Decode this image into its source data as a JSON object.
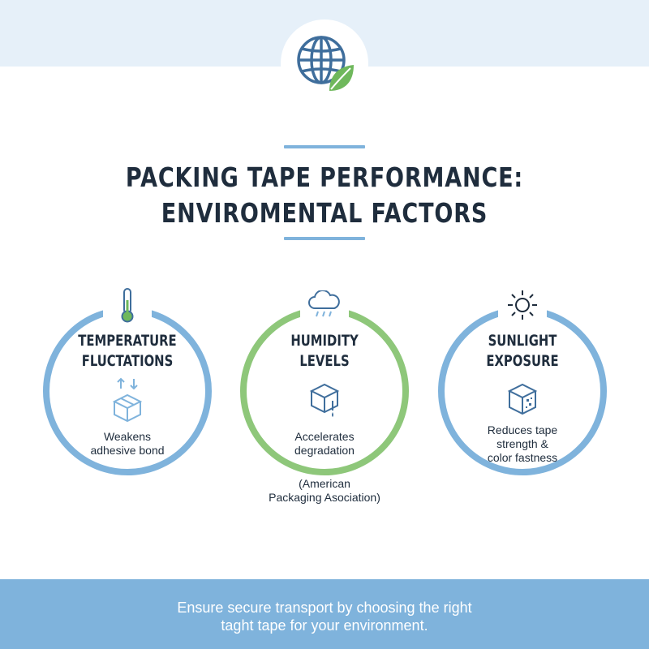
{
  "header": {
    "logo_icon": "globe-with-leaf-icon",
    "title_lines": [
      "PACKING TAPE PERFORMANCE:",
      "ENVIROMENTAL FACTORS"
    ]
  },
  "factors": [
    {
      "icon_top": "thermometer-icon",
      "icon_middle": "box-with-arrows-icon",
      "heading_lines": [
        "TEMPERATURE",
        "FLUCTATIONS"
      ],
      "description_lines": [
        "Weakens",
        "adhesive bond"
      ],
      "ring_color": "#7fb3dc"
    },
    {
      "icon_top": "rain-cloud-icon",
      "icon_middle": "box-with-drip-icon",
      "heading_lines": [
        "HUMIDITY",
        "LEVELS"
      ],
      "description_lines": [
        "Accelerates",
        "degradation"
      ],
      "ring_color": "#8ec77a"
    },
    {
      "icon_top": "sun-icon",
      "icon_middle": "faded-box-icon",
      "heading_lines": [
        "SUNLIGHT",
        "EXPOSURE"
      ],
      "description_lines": [
        "Reduces tape",
        "strength &",
        "color fastness"
      ],
      "ring_color": "#7fb3dc"
    }
  ],
  "citation_lines": [
    "(American",
    "Packaging Asociation)"
  ],
  "footer": {
    "lines": [
      "Ensure secure transport by choosing the right",
      "taght tape for your environment."
    ]
  },
  "colors": {
    "accent_blue": "#7fb3dc",
    "accent_green": "#8ec77a",
    "top_band": "#e6f0f9",
    "text_dark": "#1f2d3d",
    "icon_blue": "#3f6e9c"
  }
}
